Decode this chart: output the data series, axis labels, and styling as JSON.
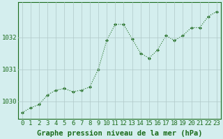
{
  "x": [
    0,
    1,
    2,
    3,
    4,
    5,
    6,
    7,
    8,
    9,
    10,
    11,
    12,
    13,
    14,
    15,
    16,
    17,
    18,
    19,
    20,
    21,
    22,
    23
  ],
  "y": [
    1029.65,
    1029.8,
    1029.9,
    1030.2,
    1030.35,
    1030.4,
    1030.3,
    1030.35,
    1030.45,
    1031.0,
    1031.9,
    1032.4,
    1032.4,
    1031.95,
    1031.5,
    1031.35,
    1031.6,
    1032.05,
    1031.9,
    1032.05,
    1032.3,
    1032.3,
    1032.65,
    1032.8
  ],
  "line_color": "#1a6b1a",
  "marker_color": "#1a6b1a",
  "bg_color": "#d4eeee",
  "grid_color": "#b0c8c8",
  "xlabel": "Graphe pression niveau de la mer (hPa)",
  "xlabel_color": "#1a6b1a",
  "yticks": [
    1030,
    1031,
    1032
  ],
  "ylim": [
    1029.45,
    1033.1
  ],
  "xlim": [
    -0.5,
    23.5
  ],
  "xticks": [
    0,
    1,
    2,
    3,
    4,
    5,
    6,
    7,
    8,
    9,
    10,
    11,
    12,
    13,
    14,
    15,
    16,
    17,
    18,
    19,
    20,
    21,
    22,
    23
  ],
  "title_color": "#1a6b1a",
  "fontsize_xlabel": 7.5,
  "fontsize_ticks": 6.5
}
